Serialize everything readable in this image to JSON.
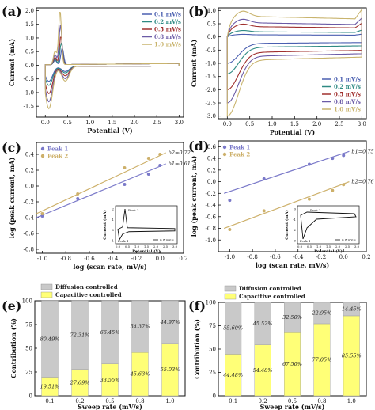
{
  "panels": {
    "a": "(a)",
    "b": "(b)",
    "c": "(c)",
    "d": "(d)",
    "e": "(e)",
    "f": "(f)"
  },
  "colors": {
    "c01": "#4a5fb0",
    "c02": "#2e8a83",
    "c05": "#a0302e",
    "c08": "#6b5ba6",
    "c10": "#c9b46e",
    "peak1": "#7a79c9",
    "peak2": "#cdb06a",
    "diffusion": "#c9c9c9",
    "capacitive": "#ffff77"
  },
  "chart_data": [
    {
      "id": "a",
      "type": "line",
      "xlabel": "Potential (V)",
      "ylabel": "Current (mA)",
      "xlim": [
        -0.2,
        3.1
      ],
      "ylim": [
        -1.9,
        2.1
      ],
      "xticks": [
        0.0,
        0.5,
        1.0,
        1.5,
        2.0,
        2.5,
        3.0
      ],
      "yticks": [
        -1.5,
        -1.0,
        -0.5,
        0.0,
        0.5,
        1.0,
        1.5,
        2.0
      ],
      "legend_position": "top-right",
      "series": [
        {
          "name": "0.1 mV/s",
          "color_key": "c01",
          "peak": 0.62,
          "neg": -0.55,
          "peakx": 0.38
        },
        {
          "name": "0.2 mV/s",
          "color_key": "c02",
          "peak": 0.8,
          "neg": -0.7,
          "peakx": 0.36
        },
        {
          "name": "0.5 mV/s",
          "color_key": "c05",
          "peak": 1.05,
          "neg": -1.0,
          "peakx": 0.35
        },
        {
          "name": "0.8 mV/s",
          "color_key": "c08",
          "peak": 1.45,
          "neg": -1.3,
          "peakx": 0.34
        },
        {
          "name": "1.0 mV/s",
          "color_key": "c10",
          "peak": 2.0,
          "neg": -1.55,
          "peakx": 0.33
        }
      ]
    },
    {
      "id": "b",
      "type": "line",
      "xlabel": "Potential (V)",
      "ylabel": "Current (mA)",
      "xlim": [
        -0.2,
        3.1
      ],
      "ylim": [
        -3.1,
        1.1
      ],
      "xticks": [
        0.0,
        0.5,
        1.0,
        1.5,
        2.0,
        2.5,
        3.0
      ],
      "yticks": [
        -3.0,
        -2.5,
        -2.0,
        -1.5,
        -1.0,
        -0.5,
        0.0,
        0.5,
        1.0
      ],
      "legend_position": "bottom-right",
      "series": [
        {
          "name": "0.1 mV/s",
          "color_key": "c01",
          "top": 0.08,
          "bot": -0.25,
          "min": -1.0
        },
        {
          "name": "0.2 mV/s",
          "color_key": "c02",
          "top": 0.2,
          "bot": -0.4,
          "min": -1.4
        },
        {
          "name": "0.5 mV/s",
          "color_key": "c05",
          "top": 0.4,
          "bot": -0.6,
          "min": -2.0
        },
        {
          "name": "0.8 mV/s",
          "color_key": "c08",
          "top": 0.55,
          "bot": -0.75,
          "min": -2.5
        },
        {
          "name": "1.0 mV/s",
          "color_key": "c10",
          "top": 0.8,
          "bot": -0.9,
          "min": -3.0
        }
      ]
    },
    {
      "id": "c",
      "type": "scatter",
      "xlabel": "log (scan rate, mV/s)",
      "ylabel": "log (peak current, mA)",
      "xlim": [
        -1.05,
        0.2
      ],
      "ylim": [
        -0.85,
        0.55
      ],
      "xticks": [
        -1.0,
        -0.8,
        -0.6,
        -0.4,
        -0.2,
        0.0,
        0.2
      ],
      "yticks": [
        -0.8,
        -0.6,
        -0.4,
        -0.2,
        0.0,
        0.2,
        0.4
      ],
      "legend_position": "top-left",
      "series": [
        {
          "name": "Peak 1",
          "color_key": "peak1",
          "x": [
            -1.0,
            -0.699,
            -0.301,
            -0.097,
            0.0
          ],
          "y": [
            -0.38,
            -0.16,
            0.02,
            0.15,
            0.26
          ],
          "fit": [
            [
              -1.05,
              -0.4
            ],
            [
              0.05,
              0.28
            ]
          ],
          "label": "b1=0.61"
        },
        {
          "name": "Peak 2",
          "color_key": "peak2",
          "x": [
            -1.0,
            -0.699,
            -0.301,
            -0.097,
            0.0
          ],
          "y": [
            -0.35,
            -0.1,
            0.23,
            0.35,
            0.4
          ],
          "fit": [
            [
              -1.05,
              -0.35
            ],
            [
              0.05,
              0.42
            ]
          ],
          "label": "b2=0.72"
        }
      ],
      "inset": {
        "xlabel": "Potential (V)",
        "ylabel": "Current (mA)",
        "xticks": [
          "0.0",
          "0.5",
          "1.0",
          "1.5",
          "2.0",
          "2.5",
          "3.0"
        ],
        "yticks": [
          "-1",
          "0",
          "1",
          "2"
        ],
        "peak_top": "Peak 2",
        "peak_bottom": "Peak 1",
        "legend": "0.8 mV/s"
      }
    },
    {
      "id": "d",
      "type": "scatter",
      "xlabel": "log (scan rate, mV/s)",
      "ylabel": "log (peak current, mA)",
      "xlim": [
        -1.1,
        0.2
      ],
      "ylim": [
        -1.2,
        0.7
      ],
      "xticks": [
        -1.0,
        -0.8,
        -0.6,
        -0.4,
        -0.2,
        0.0,
        0.2
      ],
      "yticks": [
        -1.0,
        -0.8,
        -0.6,
        -0.4,
        -0.2,
        0.0,
        0.2,
        0.4,
        0.6
      ],
      "legend_position": "top-left",
      "series": [
        {
          "name": "Peak 1",
          "color_key": "peak1",
          "x": [
            -1.0,
            -0.699,
            -0.301,
            -0.097,
            0.0
          ],
          "y": [
            -0.32,
            0.05,
            0.3,
            0.4,
            0.45
          ],
          "fit": [
            [
              -1.05,
              -0.2
            ],
            [
              0.05,
              0.52
            ]
          ],
          "label": "b1=0.75"
        },
        {
          "name": "Peak 2",
          "color_key": "peak2",
          "x": [
            -1.0,
            -0.699,
            -0.301,
            -0.097,
            0.0
          ],
          "y": [
            -0.82,
            -0.5,
            -0.3,
            -0.15,
            -0.05
          ],
          "fit": [
            [
              -1.05,
              -0.8
            ],
            [
              0.05,
              0.0
            ]
          ],
          "label": "b2=0.76"
        }
      ],
      "inset": {
        "xlabel": "Potential (V)",
        "ylabel": "Current (mA)",
        "xticks": [
          "0.0",
          "0.5",
          "1.0",
          "1.5",
          "2.0",
          "2.5",
          "3.0"
        ],
        "yticks": [
          "-3",
          "-2",
          "-1",
          "0"
        ],
        "peak_top": "Peak 2",
        "peak_bottom": "Peak 1",
        "legend": "0.8 mV/s"
      }
    },
    {
      "id": "e",
      "type": "bar",
      "xlabel": "Sweep rate (mV/s)",
      "ylabel": "Contribution (%)",
      "ylim": [
        0,
        100
      ],
      "yticks": [
        0,
        25,
        50,
        75,
        100
      ],
      "categories": [
        "0.1",
        "0.2",
        "0.5",
        "0.8",
        "1.0"
      ],
      "legend_position": "top",
      "series": [
        {
          "name": "Diffusion controlled",
          "color_key": "diffusion",
          "values": [
            80.49,
            72.31,
            66.45,
            54.37,
            44.97
          ],
          "labels": [
            "80.49%",
            "72.31%",
            "66.45%",
            "54.37%",
            "44.97%"
          ]
        },
        {
          "name": "Capacitive controlled",
          "color_key": "capacitive",
          "values": [
            19.51,
            27.69,
            33.55,
            45.63,
            55.03
          ],
          "labels": [
            "19.51%",
            "27.69%",
            "33.55%",
            "45.63%",
            "55.03%"
          ]
        }
      ]
    },
    {
      "id": "f",
      "type": "bar",
      "xlabel": "Sweep rate (mV/s)",
      "ylabel": "Contribution (%)",
      "ylim": [
        0,
        100
      ],
      "yticks": [
        0,
        25,
        50,
        75,
        100
      ],
      "categories": [
        "0.1",
        "0.2",
        "0.5",
        "0.8",
        "1.0"
      ],
      "legend_position": "top",
      "series": [
        {
          "name": "Diffusion controlled",
          "color_key": "diffusion",
          "values": [
            55.6,
            45.52,
            32.5,
            22.95,
            14.45
          ],
          "labels": [
            "55.60%",
            "45.52%",
            "32.50%",
            "22.95%",
            "14.45%"
          ]
        },
        {
          "name": "Capacitive controlled",
          "color_key": "capacitive",
          "values": [
            44.48,
            54.48,
            67.5,
            77.05,
            85.55
          ],
          "labels": [
            "44.48%",
            "54.48%",
            "67.50%",
            "77.05%",
            "85.55%"
          ]
        }
      ]
    }
  ]
}
